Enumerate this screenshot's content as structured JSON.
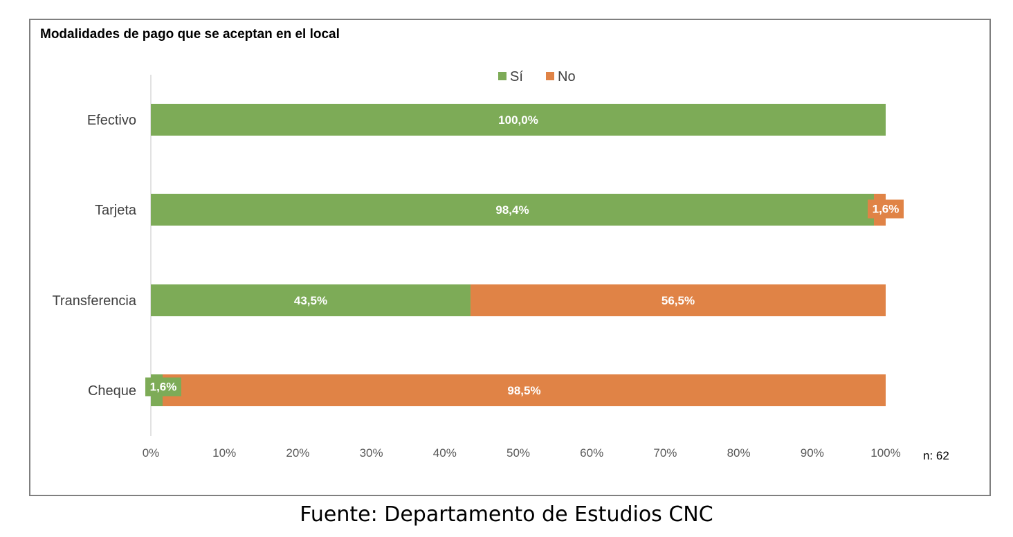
{
  "chart_data": {
    "type": "bar",
    "orientation": "horizontal",
    "stacked": true,
    "title": "Modalidades de pago que se aceptan en el local",
    "categories": [
      "Efectivo",
      "Tarjeta",
      "Transferencia",
      "Cheque"
    ],
    "series": [
      {
        "name": "Sí",
        "color": "#7dab57",
        "values": [
          100.0,
          98.4,
          43.5,
          1.6
        ],
        "labels": [
          "100,0%",
          "98,4%",
          "43,5%",
          "1,6%"
        ]
      },
      {
        "name": "No",
        "color": "#e08346",
        "values": [
          0,
          1.6,
          56.5,
          98.5
        ],
        "labels": [
          "",
          "1,6%",
          "56,5%",
          "98,5%"
        ]
      }
    ],
    "xlim": [
      0,
      100
    ],
    "x_ticks": [
      "0%",
      "10%",
      "20%",
      "30%",
      "40%",
      "50%",
      "60%",
      "70%",
      "80%",
      "90%",
      "100%"
    ],
    "legend_position": "top",
    "grid": false,
    "sample_note": "n: 62"
  },
  "source_note": "Fuente: Departamento de Estudios CNC"
}
